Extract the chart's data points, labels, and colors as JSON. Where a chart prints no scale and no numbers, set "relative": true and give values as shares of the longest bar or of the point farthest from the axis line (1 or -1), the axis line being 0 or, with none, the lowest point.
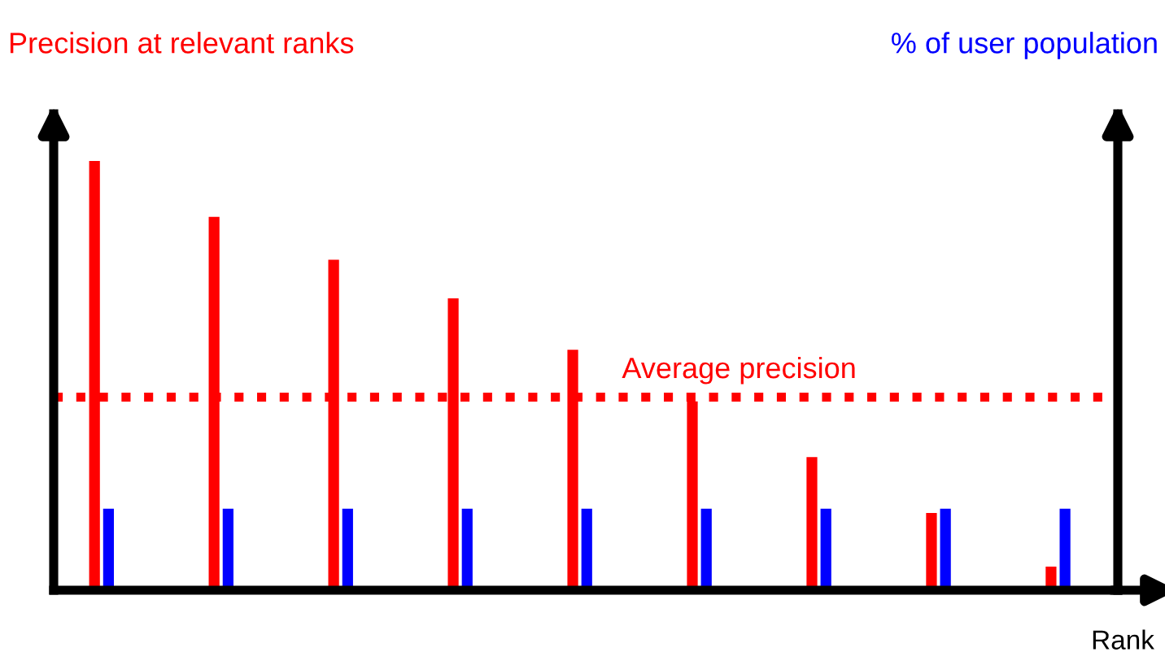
{
  "chart_data": {
    "type": "bar",
    "relative": true,
    "categories": [
      null,
      null,
      null,
      null,
      null,
      null,
      null,
      null,
      null
    ],
    "series": [
      {
        "color": "#ff0000",
        "values": [
          1,
          0.87,
          0.77,
          0.68,
          0.56,
          0.44,
          0.31,
          0.18,
          0.055
        ]
      },
      {
        "color": "#0000ff",
        "values": [
          0.19,
          0.19,
          0.19,
          0.19,
          0.19,
          0.19,
          0.19,
          0.19,
          0.19
        ]
      }
    ],
    "ylabel": "Precision at relevant ranks",
    "y2label": "% of user population",
    "xlabel": "Rank",
    "ref_lines": [
      {
        "axis": "y",
        "value": 0.45,
        "label": "Average precision",
        "color": "#ff0000",
        "line_style": "dotted"
      }
    ],
    "legend": false,
    "tick_labels": false
  }
}
